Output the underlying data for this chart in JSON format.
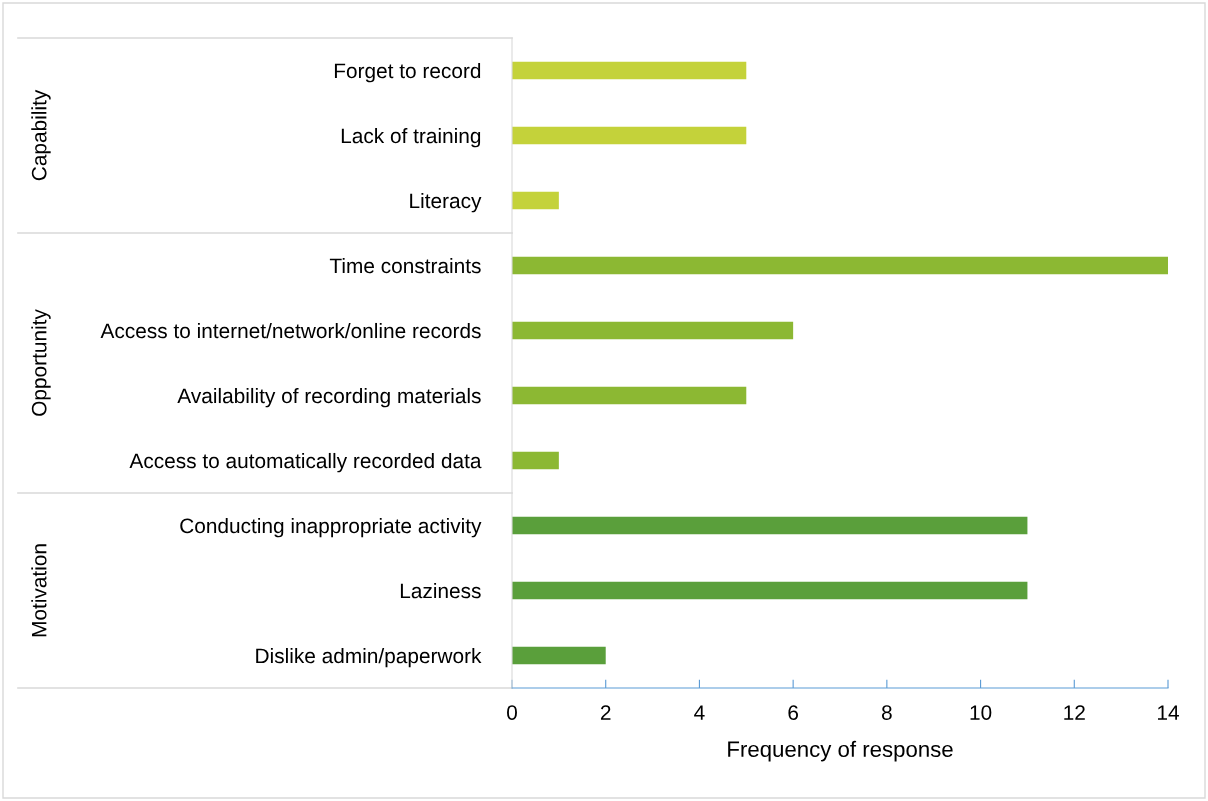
{
  "chart_data": {
    "type": "bar",
    "orientation": "horizontal",
    "xlabel": "Frequency of response",
    "categories": [
      "Forget to record",
      "Lack of training",
      "Literacy",
      "Time constraints",
      "Access to internet/network/online records",
      "Availability of recording materials",
      "Access to automatically recorded data",
      "Conducting inappropriate activity",
      "Laziness",
      "Dislike admin/paperwork"
    ],
    "series": [
      {
        "color": "#c4d23a",
        "values": [
          5,
          5,
          1,
          null,
          null,
          null,
          null,
          null,
          null,
          null
        ]
      },
      {
        "color": "#8cb833",
        "values": [
          null,
          null,
          null,
          14,
          6,
          5,
          1,
          null,
          null,
          null
        ]
      },
      {
        "color": "#5a9f3b",
        "values": [
          null,
          null,
          null,
          null,
          null,
          null,
          null,
          11,
          11,
          2
        ]
      }
    ],
    "xlim": [
      0,
      14
    ],
    "xticks": [
      0,
      2,
      4,
      6,
      8,
      10,
      12,
      14
    ],
    "annotations": [
      "Capability",
      "Opportunity",
      "Motivation"
    ],
    "grid": false,
    "legend": false
  }
}
